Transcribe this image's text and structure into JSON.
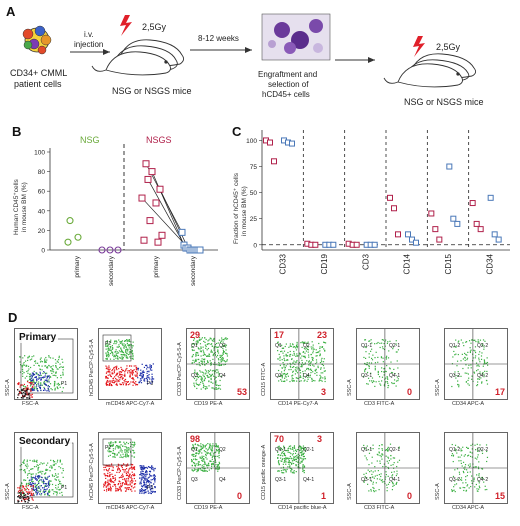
{
  "panels": {
    "A": "A",
    "B": "B",
    "C": "C",
    "D": "D"
  },
  "panelA": {
    "patient_label_1": "CD34+ CMML",
    "patient_label_2": "patient cells",
    "arrow1_label_1": "i.v.",
    "arrow1_label_2": "injection",
    "dose1": "2,5Gy",
    "mice1": "NSG or NSGS mice",
    "weeks": "8-12 weeks",
    "engraft_1": "Engraftment and",
    "engraft_2": "selection of",
    "engraft_3": "hCD45+ cells",
    "dose2": "2,5Gy",
    "mice2": "NSG or NSGS mice"
  },
  "panelB": {
    "title_nsg": "NSG",
    "title_nsgs": "NSGS",
    "ylabel_1": "Human CD45⁺cells",
    "ylabel_2": "in mouse BM (%)",
    "yticks": [
      "0",
      "20",
      "40",
      "60",
      "80",
      "100"
    ],
    "xticks": [
      "primary",
      "secondary",
      "primary",
      "secondary"
    ]
  },
  "panelC": {
    "ylabel_1": "Fraction of hCD45⁺ cells",
    "ylabel_2": "in mouse BM (%)",
    "yticks": [
      "0",
      "25",
      "50",
      "75",
      "100"
    ],
    "xticks": [
      "CD33",
      "CD19",
      "CD3",
      "CD14",
      "CD15",
      "CD34"
    ]
  },
  "panelD": {
    "row_primary": "Primary",
    "row_secondary": "Secondary",
    "plots": [
      {
        "ylabel": "SSC-A",
        "xlabel": "FSC-A",
        "gates": [
          "P1"
        ],
        "quads": []
      },
      {
        "ylabel": "hCD45 PerCP-Cy5-5-A",
        "xlabel": "mCD45 APC-Cy7-A",
        "gates": [
          "P2",
          "P3"
        ],
        "quads": []
      },
      {
        "ylabel": "CD33 PerCP-Cy5-5-A",
        "xlabel": "CD19 PE-A",
        "gates": [
          "Q1",
          "Q2",
          "Q3",
          "Q4"
        ],
        "quads": [
          "29",
          "",
          "",
          "53"
        ]
      },
      {
        "ylabel": "CD15 FITC-A",
        "xlabel": "CD14 PE-Cy7-A",
        "gates": [
          "Q1",
          "Q2",
          "Q3",
          "Q4"
        ],
        "quads": [
          "17",
          "23",
          "",
          "3"
        ]
      },
      {
        "ylabel": "SSC-A",
        "xlabel": "CD3 FITC-A",
        "gates": [
          "Q1-1",
          "Q2-1",
          "Q3-1",
          "Q4-1"
        ],
        "quads": [
          "",
          "",
          "",
          "0"
        ]
      },
      {
        "ylabel": "SSC-A",
        "xlabel": "CD34 APC-A",
        "gates": [
          "Q1-2",
          "Q2-2",
          "Q3-2",
          "Q4-2"
        ],
        "quads": [
          "",
          "",
          "",
          "17"
        ]
      },
      {
        "ylabel": "SSC-A",
        "xlabel": "FSC-A",
        "gates": [
          "P1"
        ],
        "quads": []
      },
      {
        "ylabel": "hCD45 PerCP-Cy5-5-A",
        "xlabel": "mCD45 APC-Cy7-A",
        "gates": [
          "P2",
          "P3"
        ],
        "quads": []
      },
      {
        "ylabel": "CD33 PerCP-Cy5-5-A",
        "xlabel": "CD19 PE-A",
        "gates": [
          "Q1",
          "Q2",
          "Q3",
          "Q4"
        ],
        "quads": [
          "98",
          "",
          "",
          "0"
        ]
      },
      {
        "ylabel": "CD15 pacific orange-A",
        "xlabel": "CD14 pacific blue-A",
        "gates": [
          "Q1-1",
          "Q2-1",
          "Q3-1",
          "Q4-1"
        ],
        "quads": [
          "70",
          "3",
          "",
          "1"
        ]
      },
      {
        "ylabel": "SSC-A",
        "xlabel": "CD3 FITC-A",
        "gates": [
          "Q1-1",
          "Q2-1",
          "Q3-1",
          "Q4-1"
        ],
        "quads": [
          "",
          "",
          "",
          "0"
        ]
      },
      {
        "ylabel": "SSC-A",
        "xlabel": "CD34 APC-A",
        "gates": [
          "Q1-2",
          "Q2-2",
          "Q3-2",
          "Q4-2"
        ],
        "quads": [
          "",
          "",
          "",
          "15"
        ]
      }
    ]
  },
  "colors": {
    "nsg": "#6aaa3a",
    "nsgs_red": "#b0204a",
    "blue": "#4a78b8",
    "quad_red": "#d0202a",
    "dots_green": "#3cb043",
    "dots_blue": "#1c2ea8",
    "dots_red": "#e3161b"
  },
  "chart_data": [
    {
      "type": "scatter",
      "title": "",
      "xlabel": "",
      "ylabel": "Human CD45⁺cells in mouse BM (%)",
      "ylim": [
        0,
        100
      ],
      "categories": [
        "primary",
        "secondary",
        "primary",
        "secondary"
      ],
      "series": [
        {
          "name": "NSG",
          "values_by_category": {
            "primary": [
              30,
              5,
              8
            ],
            "secondary": [
              0,
              0,
              0
            ]
          }
        },
        {
          "name": "NSGS",
          "values_by_category": {
            "primary": [
              88,
              80,
              72,
              62,
              53,
              48,
              30,
              15,
              10,
              8
            ],
            "secondary": [
              18,
              5,
              2,
              2,
              0,
              0,
              0,
              0,
              0,
              0
            ]
          }
        }
      ]
    },
    {
      "type": "scatter",
      "title": "",
      "xlabel": "",
      "ylabel": "Fraction of hCD45⁺ cells in mouse BM (%)",
      "ylim": [
        -5,
        110
      ],
      "categories": [
        "CD33",
        "CD19",
        "CD3",
        "CD14",
        "CD15",
        "CD34"
      ],
      "series": [
        {
          "name": "red",
          "values": [
            [
              100,
              98,
              80
            ],
            [
              1,
              0,
              0
            ],
            [
              1,
              0,
              0
            ],
            [
              45,
              35,
              10
            ],
            [
              30,
              15,
              5
            ],
            [
              40,
              20,
              15
            ]
          ]
        },
        {
          "name": "blue",
          "values": [
            [
              100,
              98,
              97
            ],
            [
              0,
              0,
              0
            ],
            [
              0,
              0,
              0
            ],
            [
              10,
              5,
              2
            ],
            [
              75,
              25,
              20
            ],
            [
              45,
              10,
              5
            ]
          ]
        }
      ]
    }
  ]
}
